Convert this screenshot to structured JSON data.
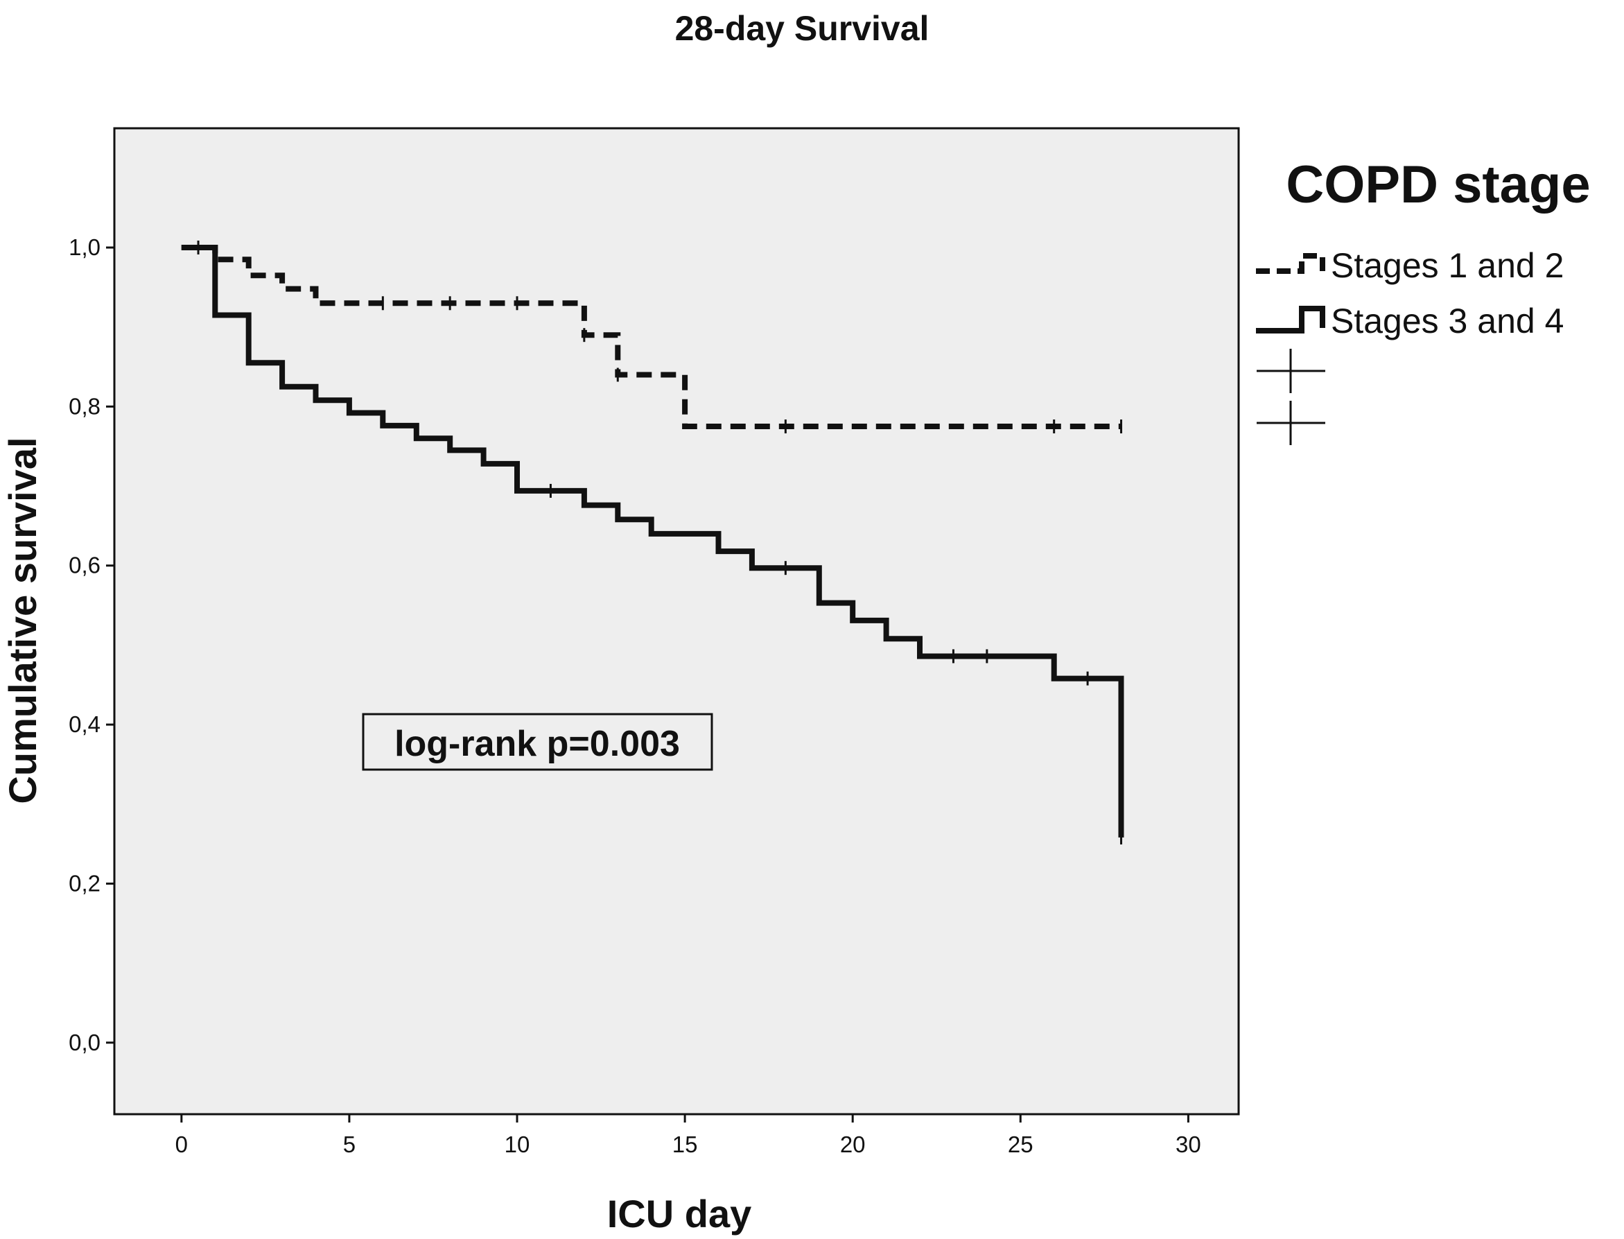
{
  "chart_data": {
    "type": "line",
    "title": "28-day Survival",
    "xlabel": "ICU day",
    "ylabel": "Cumulative survival",
    "xlim": [
      -2,
      31.5
    ],
    "ylim": [
      -0.09,
      1.15
    ],
    "x_ticks": [
      0,
      5,
      10,
      15,
      20,
      25,
      30
    ],
    "x_tick_labels": [
      "0",
      "5",
      "10",
      "15",
      "20",
      "25",
      "30"
    ],
    "y_ticks": [
      0,
      0.2,
      0.4,
      0.6,
      0.8,
      1.0
    ],
    "y_tick_labels": [
      "0,0",
      "0,2",
      "0,4",
      "0,6",
      "0,8",
      "1,0"
    ],
    "grid": false,
    "legend_title": "COPD stage",
    "legend_position": "right",
    "annotation": "log-rank p=0.003",
    "colors": {
      "plot_background": "#eeeeee",
      "line": "#111111"
    },
    "series": [
      {
        "name": "Stages 1 and 2",
        "line_style": "dashed",
        "steps": [
          [
            0,
            1.0
          ],
          [
            1,
            0.985
          ],
          [
            2,
            0.965
          ],
          [
            3,
            0.948
          ],
          [
            4,
            0.93
          ],
          [
            12,
            0.89
          ],
          [
            13,
            0.84
          ],
          [
            15,
            0.775
          ]
        ],
        "end_x": 28,
        "censored": [
          [
            0.5,
            1.0
          ],
          [
            6,
            0.93
          ],
          [
            8,
            0.93
          ],
          [
            10,
            0.93
          ],
          [
            12,
            0.89
          ],
          [
            13,
            0.84
          ],
          [
            18,
            0.775
          ],
          [
            26,
            0.775
          ],
          [
            28,
            0.775
          ]
        ]
      },
      {
        "name": "Stages 3 and 4",
        "line_style": "solid",
        "steps": [
          [
            0,
            1.0
          ],
          [
            1,
            0.915
          ],
          [
            2,
            0.855
          ],
          [
            3,
            0.825
          ],
          [
            4,
            0.808
          ],
          [
            5,
            0.792
          ],
          [
            6,
            0.776
          ],
          [
            7,
            0.76
          ],
          [
            8,
            0.745
          ],
          [
            9,
            0.728
          ],
          [
            10,
            0.694
          ],
          [
            12,
            0.676
          ],
          [
            13,
            0.658
          ],
          [
            14,
            0.64
          ],
          [
            16,
            0.618
          ],
          [
            17,
            0.597
          ],
          [
            19,
            0.553
          ],
          [
            20,
            0.531
          ],
          [
            21,
            0.508
          ],
          [
            22,
            0.486
          ],
          [
            26,
            0.458
          ],
          [
            28,
            0.258
          ]
        ],
        "end_x": 28,
        "censored": [
          [
            11,
            0.694
          ],
          [
            18,
            0.597
          ],
          [
            23,
            0.486
          ],
          [
            24,
            0.486
          ],
          [
            27,
            0.458
          ],
          [
            28,
            0.258
          ]
        ]
      }
    ]
  }
}
